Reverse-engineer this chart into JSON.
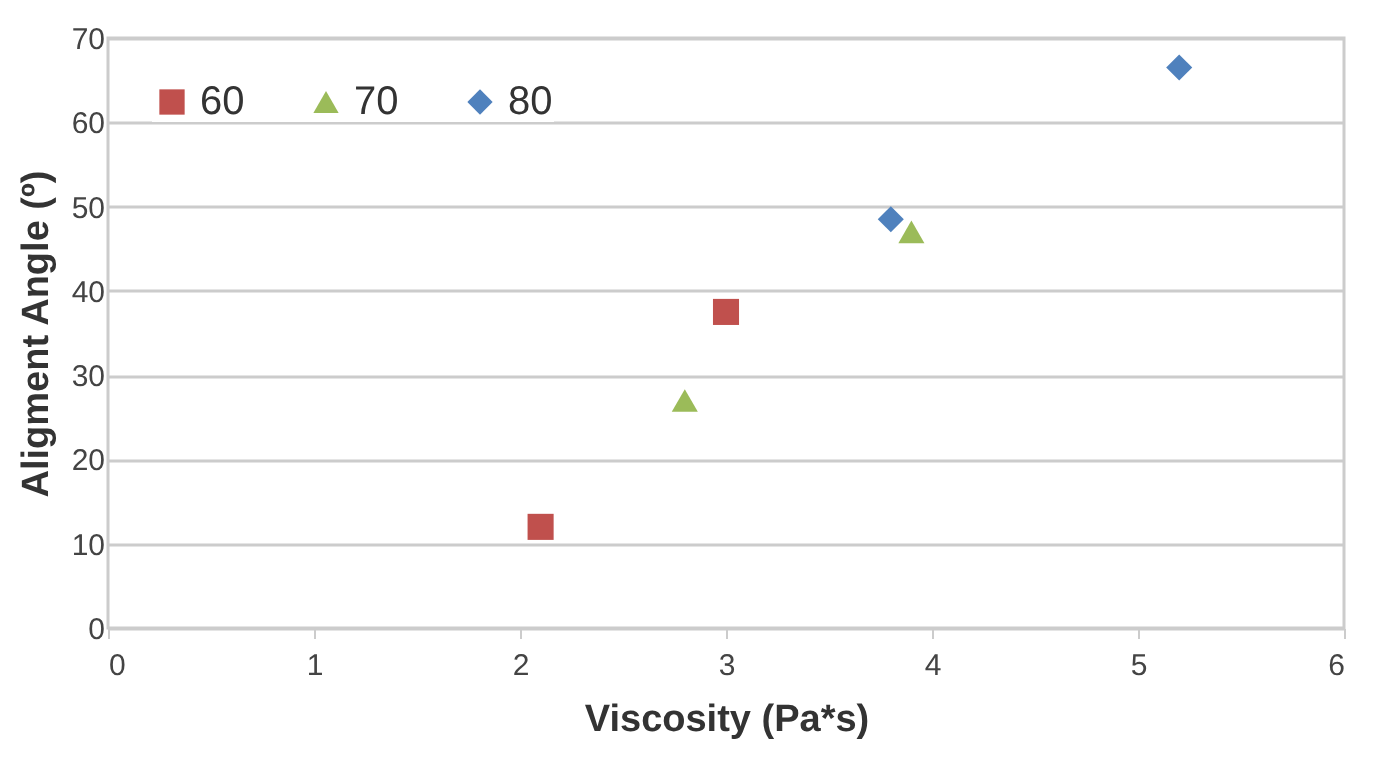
{
  "chart_data": {
    "type": "scatter",
    "xlabel": "Viscosity (Pa*s)",
    "ylabel": "Aligment Angle (º)",
    "xlim": [
      0,
      6
    ],
    "xticks": [
      0,
      1,
      2,
      3,
      4,
      5,
      6
    ],
    "ylim": [
      0,
      70
    ],
    "yticks": [
      0,
      10,
      20,
      30,
      40,
      50,
      60,
      70
    ],
    "grid": "y",
    "legend": "top left",
    "series": [
      {
        "name": "60",
        "color": "#c0504d",
        "marker": "square",
        "x": [
          2.1,
          3.0
        ],
        "values": [
          12,
          37.5
        ]
      },
      {
        "name": "70",
        "color": "#9bbb59",
        "marker": "triangle",
        "x": [
          2.8,
          3.9
        ],
        "values": [
          27,
          47
        ]
      },
      {
        "name": "80",
        "color": "#4f81bd",
        "marker": "diamond",
        "x": [
          3.8,
          5.2
        ],
        "values": [
          48.5,
          66.5
        ]
      }
    ]
  }
}
